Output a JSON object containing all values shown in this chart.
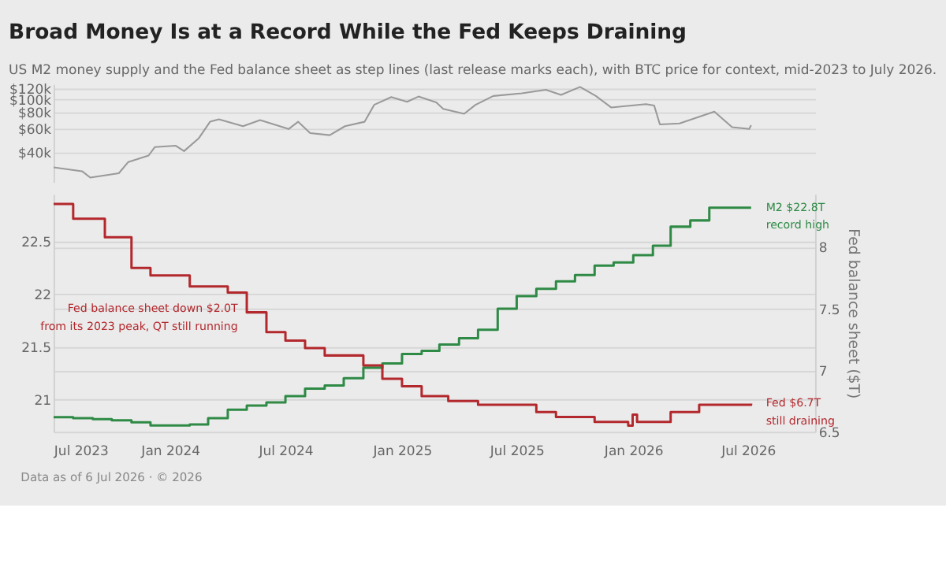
{
  "chart_data": [
    {
      "type": "line",
      "title": "Broad Money Is at a Record While the Fed Keeps Draining",
      "subtitle": "US M2 money supply and the Fed balance sheet as step lines (last release marks each), with BTC price for context, mid-2023 to July 2026.",
      "log": "y",
      "grid": "y",
      "tick_labels": "y",
      "xlim": [
        "2023-07-01",
        "2026-10-15"
      ],
      "ylim": [
        24000,
        130000
      ],
      "yticks": [
        {
          "value": 40000,
          "label": "$40k"
        },
        {
          "value": 60000,
          "label": "$60k"
        },
        {
          "value": 80000,
          "label": "$80k"
        },
        {
          "value": 100000,
          "label": "$100k"
        },
        {
          "value": 120000,
          "label": "$120k"
        }
      ],
      "series": [
        {
          "color": "#9a9a9a",
          "x": [
            "2023-07-01",
            "2023-08-15",
            "2023-08-28",
            "2023-10-12",
            "2023-10-27",
            "2023-11-28",
            "2023-12-08",
            "2024-01-10",
            "2024-01-23",
            "2024-02-15",
            "2024-03-04",
            "2024-03-18",
            "2024-04-25",
            "2024-05-22",
            "2024-07-06",
            "2024-07-21",
            "2024-08-09",
            "2024-09-09",
            "2024-10-03",
            "2024-11-03",
            "2024-11-18",
            "2024-12-15",
            "2025-01-09",
            "2025-01-27",
            "2025-02-24",
            "2025-03-07",
            "2025-04-09",
            "2025-04-27",
            "2025-05-25",
            "2025-07-09",
            "2025-08-16",
            "2025-09-09",
            "2025-10-09",
            "2025-11-03",
            "2025-11-27",
            "2026-01-21",
            "2026-02-03",
            "2026-02-12",
            "2026-03-15",
            "2026-05-09",
            "2026-06-06",
            "2026-07-03",
            "2026-07-06"
          ],
          "values": [
            31000,
            29000,
            26000,
            28000,
            34000,
            38000,
            44000,
            45000,
            41000,
            51000,
            68000,
            71000,
            63000,
            70000,
            60000,
            68000,
            56000,
            54000,
            63000,
            68000,
            91000,
            104000,
            96000,
            105000,
            95000,
            85000,
            78000,
            91000,
            106000,
            111000,
            118000,
            108000,
            124000,
            106000,
            87000,
            92000,
            90000,
            65000,
            66000,
            81000,
            62000,
            60000,
            64000
          ]
        }
      ]
    },
    {
      "type": "step",
      "grid": "y",
      "y2label": "Fed balance sheet ($T)",
      "xlim": [
        "2023-07-01",
        "2026-10-15"
      ],
      "xticks": [
        {
          "value": "2023-07-01",
          "label": "Jul 2023"
        },
        {
          "value": "2024-01-01",
          "label": "Jan 2024"
        },
        {
          "value": "2024-07-01",
          "label": "Jul 2024"
        },
        {
          "value": "2025-01-01",
          "label": "Jan 2025"
        },
        {
          "value": "2025-07-01",
          "label": "Jul 2025"
        },
        {
          "value": "2026-01-01",
          "label": "Jan 2026"
        },
        {
          "value": "2026-07-01",
          "label": "Jul 2026"
        }
      ],
      "ylim": [
        20.69,
        22.95
      ],
      "yticks": [
        21,
        21.5,
        22,
        22.5
      ],
      "y2lim": [
        6.5,
        8.43
      ],
      "y2ticks": [
        6.5,
        7,
        7.5,
        8
      ],
      "series": [
        {
          "color": "#2e8a45",
          "x": [
            "2023-07-01",
            "2023-08-01",
            "2023-09-01",
            "2023-10-01",
            "2023-11-01",
            "2023-12-01",
            "2024-01-01",
            "2024-02-01",
            "2024-03-01",
            "2024-04-01",
            "2024-05-01",
            "2024-06-01",
            "2024-07-01",
            "2024-08-01",
            "2024-09-01",
            "2024-10-01",
            "2024-11-01",
            "2024-12-01",
            "2025-01-01",
            "2025-02-01",
            "2025-03-01",
            "2025-04-01",
            "2025-05-01",
            "2025-06-01",
            "2025-07-01",
            "2025-08-01",
            "2025-09-01",
            "2025-10-01",
            "2025-11-01",
            "2025-12-01",
            "2026-01-01",
            "2026-02-01",
            "2026-03-01",
            "2026-04-01",
            "2026-05-01",
            "2026-07-06"
          ],
          "values": [
            20.83,
            20.82,
            20.81,
            20.8,
            20.78,
            20.75,
            20.75,
            20.76,
            20.82,
            20.9,
            20.94,
            20.97,
            21.03,
            21.1,
            21.13,
            21.2,
            21.3,
            21.34,
            21.43,
            21.46,
            21.52,
            21.58,
            21.66,
            21.86,
            21.98,
            22.05,
            22.12,
            22.18,
            22.27,
            22.3,
            22.37,
            22.46,
            22.64,
            22.7,
            22.82,
            22.82
          ]
        },
        {
          "color": "#b3282d",
          "axis": "y2",
          "x": [
            "2023-07-01",
            "2023-08-01",
            "2023-09-20",
            "2023-11-01",
            "2023-12-01",
            "2024-02-01",
            "2024-04-01",
            "2024-05-01",
            "2024-06-01",
            "2024-07-01",
            "2024-08-01",
            "2024-09-01",
            "2024-11-01",
            "2024-12-01",
            "2025-01-01",
            "2025-02-01",
            "2025-03-15",
            "2025-05-01",
            "2025-08-01",
            "2025-09-01",
            "2025-11-01",
            "2025-12-24",
            "2025-12-31",
            "2026-01-07",
            "2026-03-01",
            "2026-04-15",
            "2026-07-06"
          ],
          "values": [
            8.35,
            8.23,
            8.08,
            7.83,
            7.77,
            7.68,
            7.63,
            7.47,
            7.31,
            7.24,
            7.18,
            7.12,
            7.04,
            6.93,
            6.87,
            6.79,
            6.75,
            6.72,
            6.66,
            6.62,
            6.58,
            6.55,
            6.64,
            6.58,
            6.66,
            6.72,
            6.73
          ]
        }
      ],
      "annotations": [
        {
          "text": "Fed balance sheet down $2.0T\nfrom its 2023 peak, QT still running",
          "x": "2024-05-01",
          "y": 21.83
        },
        {
          "text": "M2 $22.8T\nrecord high",
          "x": "2026-07-06",
          "y": 22.82
        },
        {
          "text": "Fed $6.7T\nstill draining",
          "x": "2026-07-06",
          "y": 20.96
        },
        "Data as of 6 Jul 2026 · © 2026"
      ]
    }
  ]
}
